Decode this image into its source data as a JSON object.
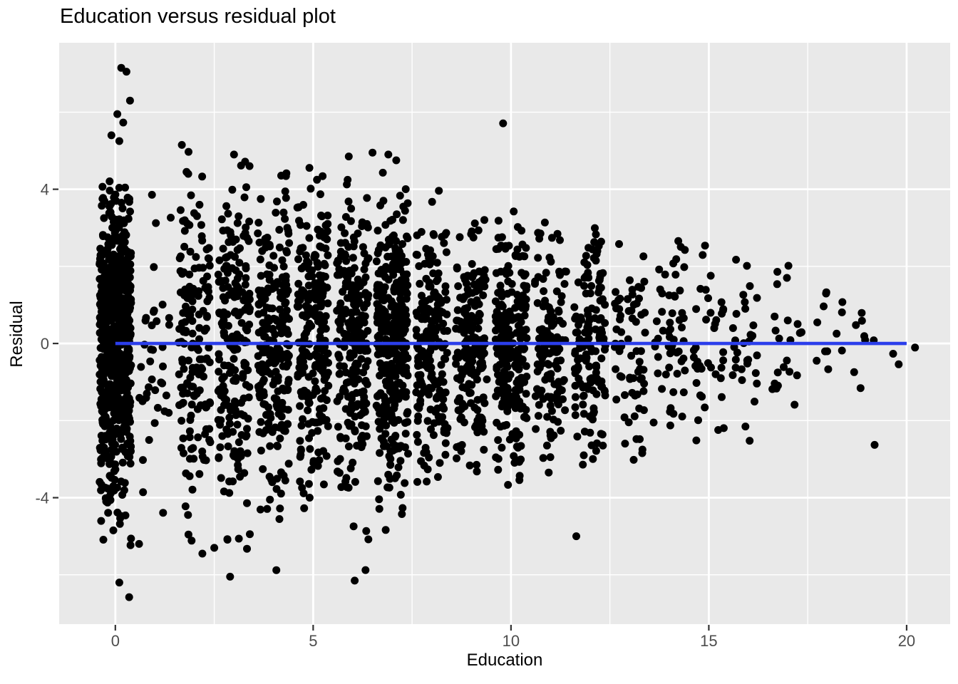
{
  "page": {
    "background": "#FFFFFF"
  },
  "chart_data": {
    "type": "scatter",
    "title": "Education versus residual plot",
    "xlabel": "Education",
    "ylabel": "Residual",
    "x_ticks": [
      0,
      5,
      10,
      15,
      20
    ],
    "y_ticks": [
      4,
      0,
      -4
    ],
    "x_minor_gridlines": [
      2.5,
      7.5,
      12.5,
      17.5
    ],
    "y_minor_gridlines": [
      6,
      2,
      -2,
      -6
    ],
    "xlim": [
      -1.42,
      21.1
    ],
    "ylim": [
      -7.28,
      7.8
    ],
    "grid": true,
    "legend": "none",
    "panel_background": "#E9E9E9",
    "gridline_color": "#FFFFFF",
    "tick_mark_color": "#333333",
    "tick_label_color": "#4D4D4D",
    "point_color": "#000000",
    "point_radius_px": 5.5,
    "jitter_half_width": 0.4,
    "zero_line": {
      "y": 0,
      "x_start": 0,
      "x_end": 20,
      "color": "#2B3EEB",
      "stroke_px": 4.6
    },
    "columns": [
      {
        "education": 0,
        "count": 650,
        "sd": 2.0,
        "res_min": -5.7,
        "res_max": 4.35
      },
      {
        "education": 1,
        "count": 38,
        "sd": 2.2,
        "res_min": -5.2,
        "res_max": 3.9
      },
      {
        "education": 2,
        "count": 160,
        "sd": 2.2,
        "res_min": -5.5,
        "res_max": 4.6
      },
      {
        "education": 3,
        "count": 200,
        "sd": 2.1,
        "res_min": -6.1,
        "res_max": 4.9
      },
      {
        "education": 4,
        "count": 230,
        "sd": 2.0,
        "res_min": -4.6,
        "res_max": 4.6
      },
      {
        "education": 5,
        "count": 240,
        "sd": 1.9,
        "res_min": -4.9,
        "res_max": 4.6
      },
      {
        "education": 6,
        "count": 240,
        "sd": 2.0,
        "res_min": -6.15,
        "res_max": 4.9
      },
      {
        "education": 7,
        "count": 350,
        "sd": 1.9,
        "res_min": -4.9,
        "res_max": 5.0
      },
      {
        "education": 8,
        "count": 200,
        "sd": 1.7,
        "res_min": -4.0,
        "res_max": 4.4
      },
      {
        "education": 9,
        "count": 180,
        "sd": 1.6,
        "res_min": -3.9,
        "res_max": 3.4
      },
      {
        "education": 10,
        "count": 240,
        "sd": 1.6,
        "res_min": -3.9,
        "res_max": 3.5
      },
      {
        "education": 11,
        "count": 130,
        "sd": 1.7,
        "res_min": -3.6,
        "res_max": 3.2
      },
      {
        "education": 12,
        "count": 150,
        "sd": 1.6,
        "res_min": -3.4,
        "res_max": 3.0
      },
      {
        "education": 13,
        "count": 70,
        "sd": 1.5,
        "res_min": -3.3,
        "res_max": 3.0
      },
      {
        "education": 14,
        "count": 55,
        "sd": 1.5,
        "res_min": -2.9,
        "res_max": 3.4
      },
      {
        "education": 15,
        "count": 40,
        "sd": 1.4,
        "res_min": -3.1,
        "res_max": 2.6
      },
      {
        "education": 16,
        "count": 32,
        "sd": 1.3,
        "res_min": -2.9,
        "res_max": 2.5
      },
      {
        "education": 17,
        "count": 22,
        "sd": 1.2,
        "res_min": -2.7,
        "res_max": 2.2
      },
      {
        "education": 18,
        "count": 12,
        "sd": 0.9,
        "res_min": -1.6,
        "res_max": 1.4
      },
      {
        "education": 19,
        "count": 7,
        "sd": 0.8,
        "res_min": -1.2,
        "res_max": 1.1
      },
      {
        "education": 20,
        "count": 2,
        "sd": 0.5,
        "res_min": -0.6,
        "res_max": 1.0
      }
    ],
    "notable_points": [
      [
        0.15,
        7.15
      ],
      [
        0.28,
        7.05
      ],
      [
        0.37,
        6.3
      ],
      [
        0.05,
        5.95
      ],
      [
        0.2,
        5.73
      ],
      [
        -0.1,
        5.4
      ],
      [
        0.1,
        5.25
      ],
      [
        1.68,
        5.15
      ],
      [
        1.85,
        4.97
      ],
      [
        1.8,
        4.45
      ],
      [
        3.0,
        4.9
      ],
      [
        5.9,
        4.85
      ],
      [
        6.5,
        4.95
      ],
      [
        6.9,
        4.9
      ],
      [
        7.1,
        4.75
      ],
      [
        9.8,
        5.71
      ],
      [
        0.35,
        -6.58
      ],
      [
        0.1,
        -6.2
      ],
      [
        2.9,
        -6.05
      ],
      [
        6.05,
        -6.15
      ],
      [
        4.07,
        -5.88
      ],
      [
        2.2,
        -5.45
      ],
      [
        2.5,
        -5.3
      ],
      [
        0.6,
        -5.2
      ],
      [
        11.65,
        -5.0
      ],
      [
        19.19,
        -2.63
      ],
      [
        19.8,
        -0.54
      ],
      [
        18.95,
        0.09
      ]
    ],
    "seed": 11
  }
}
